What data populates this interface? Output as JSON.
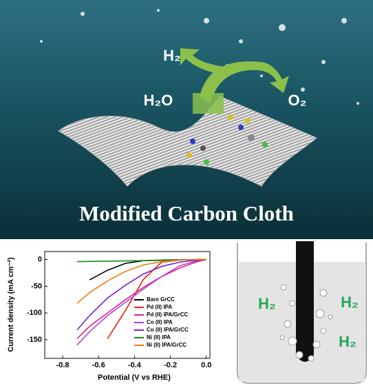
{
  "header": {
    "h2": "H₂",
    "h2o": "H₂O",
    "o2": "O₂",
    "title": "Modified Carbon Cloth"
  },
  "chart_data": {
    "type": "line",
    "x_label": "Potential (V vs RHE)",
    "y_label": "Current density (mA cm⁻²)",
    "x": [
      -0.72,
      -0.65,
      -0.55,
      -0.45,
      -0.35,
      -0.25,
      -0.15,
      -0.05,
      0
    ],
    "series": [
      {
        "name": "Bare GrCC",
        "color": "#000000",
        "values": [
          null,
          -38,
          -20,
          -7,
          -2,
          -1,
          -0.5,
          0,
          0
        ]
      },
      {
        "name": "Pd (II) IPA",
        "color": "#e8200c",
        "values": [
          null,
          null,
          -148,
          -95,
          -37,
          -5,
          -1,
          0,
          0
        ]
      },
      {
        "name": "Pd (II) IPA/GrCC",
        "color": "#e0207f",
        "values": [
          -148,
          -125,
          -100,
          -75,
          -52,
          -32,
          -16,
          -4,
          0
        ]
      },
      {
        "name": "Co (II) IPA",
        "color": "#b040e0",
        "values": [
          -160,
          -135,
          -105,
          -80,
          -55,
          -32,
          -12,
          -2,
          0
        ]
      },
      {
        "name": "Co (II) IPA/GrCC",
        "color": "#7a20c8",
        "values": [
          -132,
          -105,
          -72,
          -48,
          -27,
          -13,
          -5,
          -1,
          0
        ]
      },
      {
        "name": "Ni (II) IPA",
        "color": "#168a16",
        "values": [
          -4,
          -3.5,
          -3,
          -2.5,
          -2,
          -1.5,
          -1,
          -0.5,
          0
        ]
      },
      {
        "name": "Ni (II) IPA/GrCC",
        "color": "#f07a10",
        "values": [
          -82,
          -62,
          -40,
          -22,
          -10,
          -4,
          -1,
          0,
          0
        ]
      }
    ],
    "xlim": [
      -0.9,
      0.02
    ],
    "ylim": [
      -185,
      15
    ],
    "xticks": [
      -0.8,
      -0.6,
      -0.4,
      -0.2,
      {
        "value": 0,
        "label": "0.0"
      }
    ],
    "yticks": [
      0,
      -50,
      -100,
      -150
    ],
    "legend": "lower-right"
  },
  "beaker": {
    "labels": [
      "H₂",
      "H₂",
      "H₂"
    ]
  }
}
